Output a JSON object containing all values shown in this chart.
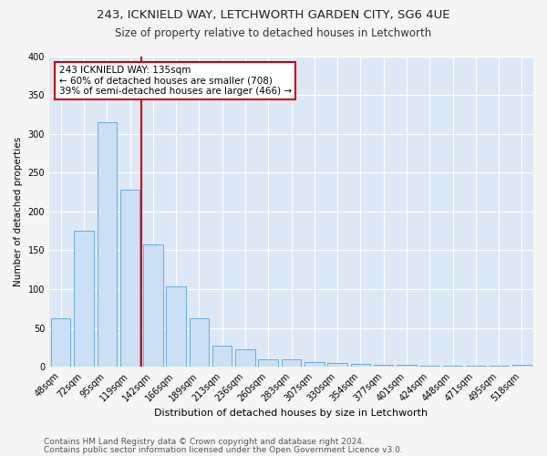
{
  "title1": "243, ICKNIELD WAY, LETCHWORTH GARDEN CITY, SG6 4UE",
  "title2": "Size of property relative to detached houses in Letchworth",
  "xlabel": "Distribution of detached houses by size in Letchworth",
  "ylabel": "Number of detached properties",
  "categories": [
    "48sqm",
    "72sqm",
    "95sqm",
    "119sqm",
    "142sqm",
    "166sqm",
    "189sqm",
    "213sqm",
    "236sqm",
    "260sqm",
    "283sqm",
    "307sqm",
    "330sqm",
    "354sqm",
    "377sqm",
    "401sqm",
    "424sqm",
    "448sqm",
    "471sqm",
    "495sqm",
    "518sqm"
  ],
  "values": [
    63,
    175,
    315,
    228,
    157,
    103,
    62,
    27,
    22,
    10,
    10,
    6,
    5,
    4,
    2,
    2,
    1,
    1,
    1,
    1,
    2
  ],
  "bar_color": "#cce0f5",
  "bar_edge_color": "#6aabdb",
  "vline_color": "#cc0000",
  "annotation_text": "243 ICKNIELD WAY: 135sqm\n← 60% of detached houses are smaller (708)\n39% of semi-detached houses are larger (466) →",
  "annotation_box_color": "#cc0000",
  "background_color": "#dce8f5",
  "grid_color": "#ffffff",
  "fig_facecolor": "#f5f5f5",
  "footer1": "Contains HM Land Registry data © Crown copyright and database right 2024.",
  "footer2": "Contains public sector information licensed under the Open Government Licence v3.0.",
  "ylim": [
    0,
    400
  ],
  "yticks": [
    0,
    50,
    100,
    150,
    200,
    250,
    300,
    350,
    400
  ],
  "title1_fontsize": 9.5,
  "title2_fontsize": 8.5,
  "xlabel_fontsize": 8,
  "ylabel_fontsize": 7.5,
  "tick_fontsize": 7,
  "annotation_fontsize": 7.5,
  "footer_fontsize": 6.5
}
